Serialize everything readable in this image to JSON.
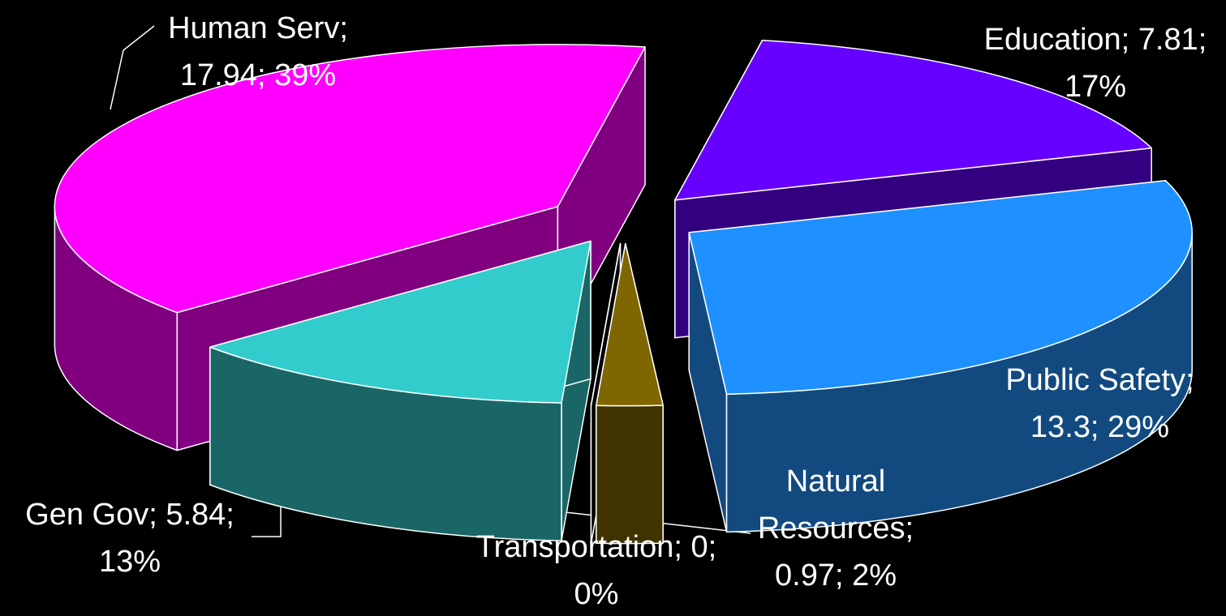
{
  "chart_data": {
    "type": "pie3d",
    "value_labels": [
      "Education; 7.81; 17%",
      "Public Safety; 13.3; 29%",
      "Natural Resources; 0.97; 2%",
      "Transportation; 0; 0%",
      "Gen Gov; 5.84; 13%",
      "Human Serv; 17.94; 39%"
    ],
    "values": [
      7.81,
      13.3,
      0.97,
      0,
      5.84,
      17.94
    ],
    "colors": [
      "#6600ff",
      "#1e90ff",
      "#806600",
      "#000000",
      "#33cccc",
      "#ff00ff"
    ],
    "side_colors": [
      "#330080",
      "#124a80",
      "#403300",
      "#000000",
      "#1a6666",
      "#800080"
    ]
  }
}
